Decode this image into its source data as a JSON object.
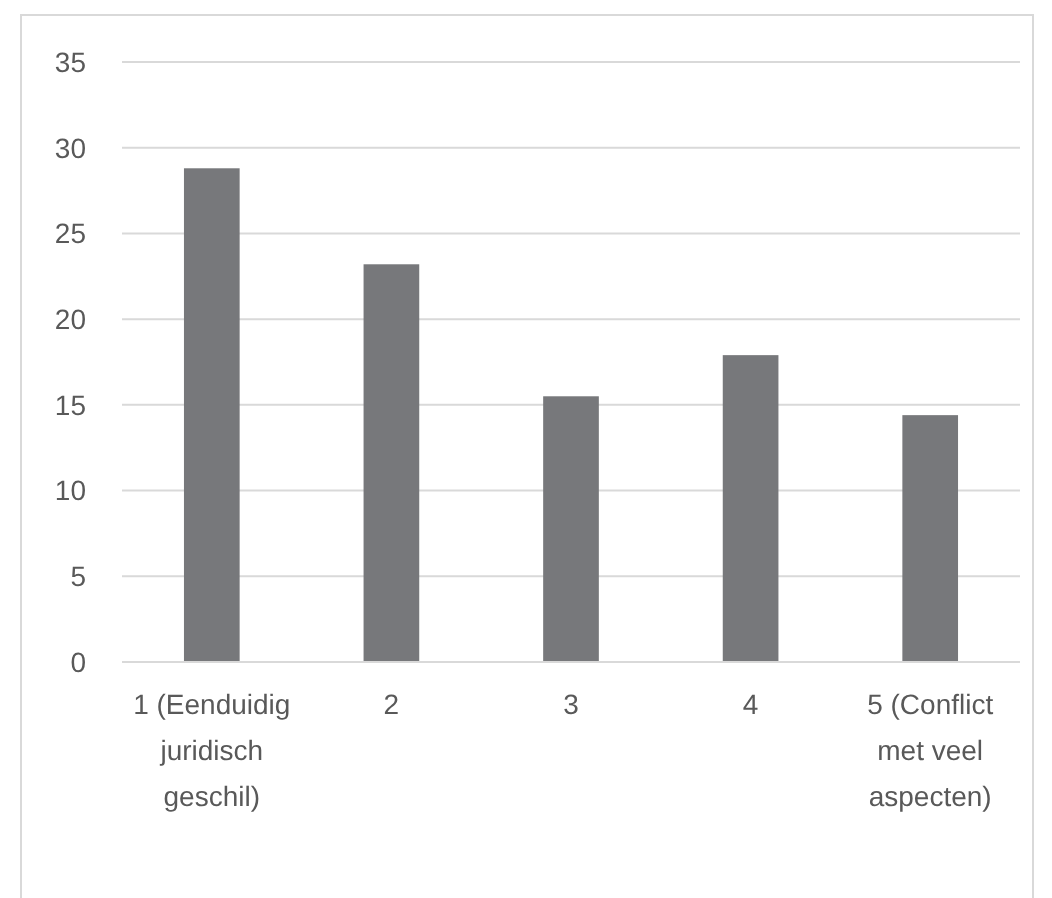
{
  "chart_data": {
    "type": "bar",
    "categories": [
      "1 (Eenduidig juridisch geschil)",
      "2",
      "3",
      "4",
      "5 (Conflict met veel aspecten)"
    ],
    "values": [
      28.8,
      23.2,
      15.5,
      17.9,
      14.4
    ],
    "color": "#77787b",
    "ylim": [
      0,
      35
    ],
    "yticks": [
      0,
      5,
      10,
      15,
      20,
      25,
      30,
      35
    ],
    "grid": "y"
  }
}
